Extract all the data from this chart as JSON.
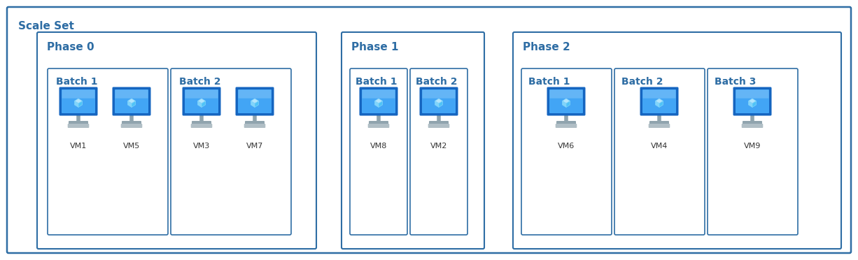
{
  "background_color": "#ffffff",
  "border_color": "#2E6DA4",
  "scale_set_label": "Scale Set",
  "phases": [
    {
      "label": "Phase 0",
      "batches": [
        {
          "label": "Batch 1",
          "vms": [
            "VM1",
            "VM5"
          ]
        },
        {
          "label": "Batch 2",
          "vms": [
            "VM3",
            "VM7"
          ]
        }
      ]
    },
    {
      "label": "Phase 1",
      "batches": [
        {
          "label": "Batch 1",
          "vms": [
            "VM8"
          ]
        },
        {
          "label": "Batch 2",
          "vms": [
            "VM2"
          ]
        }
      ]
    },
    {
      "label": "Phase 2",
      "batches": [
        {
          "label": "Batch 1",
          "vms": [
            "VM6"
          ]
        },
        {
          "label": "Batch 2",
          "vms": [
            "VM4"
          ]
        },
        {
          "label": "Batch 3",
          "vms": [
            "VM9"
          ]
        }
      ]
    }
  ],
  "label_color": "#2E6DA4",
  "monitor_body_color1": "#1565C0",
  "monitor_body_color2": "#42A5F5",
  "monitor_screen_color": "#64B5F6",
  "stand_color": "#B0BEC5",
  "cube_color": "#B3E5FC",
  "label_fontsize": 11,
  "batch_label_fontsize": 10,
  "vm_label_fontsize": 8,
  "scale_label_fontsize": 11
}
